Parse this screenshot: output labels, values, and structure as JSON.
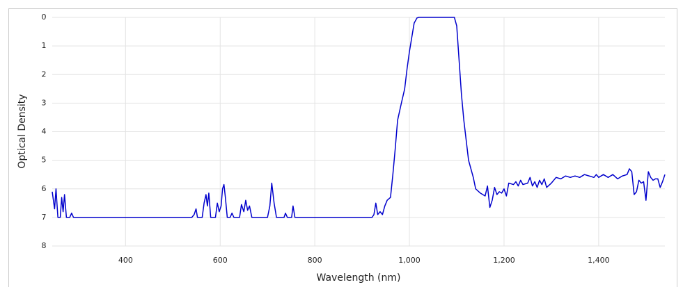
{
  "chart_data": {
    "type": "line",
    "x_label": "Wavelength (nm)",
    "y_label": "Optical Density",
    "xlim": [
      245,
      1540
    ],
    "ylim": [
      0,
      8
    ],
    "y_inverted": true,
    "grid": true,
    "xticks": [
      400,
      600,
      800,
      {
        "value": 1000,
        "label": "1,000"
      },
      {
        "value": 1200,
        "label": "1,200"
      },
      {
        "value": 1400,
        "label": "1,400"
      }
    ],
    "yticks": [
      0,
      1,
      2,
      3,
      4,
      5,
      6,
      7,
      8
    ],
    "x": [
      245,
      250,
      253,
      257,
      262,
      265,
      268,
      271,
      275,
      282,
      286,
      290,
      540,
      545,
      549,
      552,
      562,
      566,
      570,
      573,
      576,
      580,
      590,
      594,
      598,
      602,
      605,
      608,
      611,
      615,
      621,
      625,
      629,
      641,
      645,
      650,
      654,
      658,
      662,
      667,
      700,
      705,
      709,
      714,
      719,
      735,
      738,
      742,
      751,
      754,
      758,
      770,
      921,
      925,
      929,
      933,
      938,
      943,
      948,
      953,
      960,
      965,
      970,
      975,
      983,
      990,
      995,
      1000,
      1005,
      1010,
      1016,
      1020,
      1095,
      1100,
      1105,
      1110,
      1115,
      1120,
      1125,
      1130,
      1135,
      1140,
      1150,
      1160,
      1165,
      1170,
      1175,
      1180,
      1185,
      1190,
      1195,
      1200,
      1205,
      1210,
      1220,
      1225,
      1230,
      1235,
      1240,
      1250,
      1255,
      1260,
      1265,
      1270,
      1275,
      1280,
      1285,
      1290,
      1300,
      1310,
      1320,
      1330,
      1340,
      1350,
      1360,
      1370,
      1380,
      1390,
      1395,
      1400,
      1410,
      1420,
      1430,
      1440,
      1450,
      1460,
      1465,
      1470,
      1475,
      1480,
      1485,
      1490,
      1495,
      1500,
      1505,
      1510,
      1515,
      1520,
      1525,
      1530,
      1535,
      1540
    ],
    "series": [
      {
        "color": "#0000cc",
        "values": [
          6.1,
          6.7,
          6.0,
          7.0,
          7.0,
          6.3,
          6.8,
          6.2,
          7.0,
          7.0,
          6.85,
          7.0,
          7.0,
          6.9,
          6.7,
          7.0,
          7.0,
          6.5,
          6.2,
          6.6,
          6.15,
          7.0,
          7.0,
          6.5,
          6.8,
          6.6,
          6.0,
          5.85,
          6.3,
          7.0,
          7.0,
          6.85,
          7.0,
          7.0,
          6.55,
          6.8,
          6.4,
          6.75,
          6.6,
          7.0,
          7.0,
          6.6,
          5.8,
          6.5,
          7.0,
          7.0,
          6.85,
          7.0,
          7.0,
          6.6,
          7.0,
          7.0,
          7.0,
          6.9,
          6.5,
          6.9,
          6.8,
          6.9,
          6.6,
          6.4,
          6.3,
          5.5,
          4.6,
          3.6,
          3.0,
          2.5,
          1.8,
          1.2,
          0.7,
          0.2,
          0.02,
          0,
          0,
          0.3,
          1.5,
          2.7,
          3.6,
          4.3,
          5.0,
          5.3,
          5.6,
          6.0,
          6.15,
          6.25,
          5.9,
          6.65,
          6.4,
          5.95,
          6.2,
          6.1,
          6.15,
          6.0,
          6.25,
          5.8,
          5.85,
          5.75,
          5.9,
          5.7,
          5.85,
          5.8,
          5.6,
          5.9,
          5.75,
          5.95,
          5.7,
          5.85,
          5.65,
          5.95,
          5.8,
          5.6,
          5.65,
          5.55,
          5.6,
          5.55,
          5.6,
          5.5,
          5.55,
          5.6,
          5.5,
          5.6,
          5.5,
          5.6,
          5.5,
          5.65,
          5.55,
          5.5,
          5.3,
          5.4,
          6.2,
          6.1,
          5.7,
          5.8,
          5.75,
          6.4,
          5.4,
          5.6,
          5.7,
          5.65,
          5.65,
          5.95,
          5.75,
          5.5
        ]
      }
    ]
  }
}
